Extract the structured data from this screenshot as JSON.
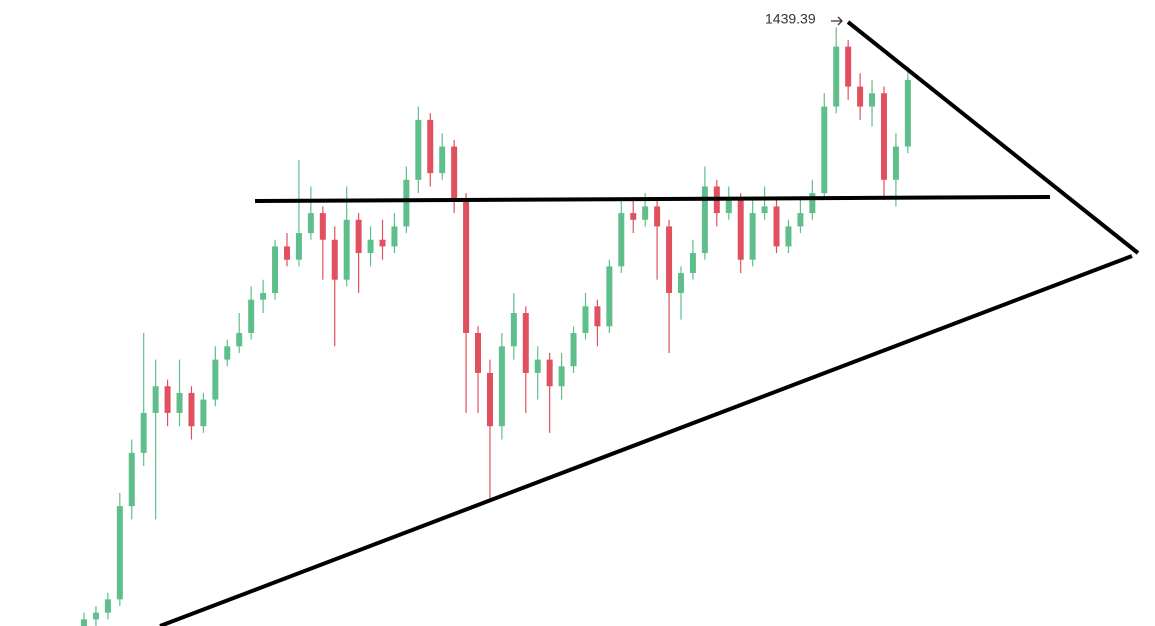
{
  "chart_data": {
    "type": "candlestick",
    "open": [
      985,
      995,
      1000,
      1010,
      1080,
      1120,
      1150,
      1170,
      1150,
      1165,
      1140,
      1160,
      1190,
      1200,
      1210,
      1235,
      1240,
      1275,
      1265,
      1285,
      1300,
      1280,
      1250,
      1295,
      1270,
      1280,
      1275,
      1290,
      1325,
      1370,
      1330,
      1350,
      1310,
      1210,
      1180,
      1140,
      1200,
      1225,
      1180,
      1190,
      1170,
      1185,
      1210,
      1230,
      1215,
      1260,
      1300,
      1295,
      1305,
      1290,
      1240,
      1255,
      1270,
      1320,
      1300,
      1310,
      1265,
      1300,
      1305,
      1275,
      1290,
      1300,
      1315,
      1380,
      1425,
      1395,
      1380,
      1390,
      1325,
      1350
    ],
    "high": [
      1000,
      1005,
      1015,
      1090,
      1130,
      1210,
      1190,
      1175,
      1190,
      1170,
      1165,
      1200,
      1205,
      1225,
      1245,
      1250,
      1280,
      1285,
      1340,
      1320,
      1305,
      1290,
      1320,
      1300,
      1290,
      1295,
      1300,
      1335,
      1380,
      1375,
      1360,
      1355,
      1315,
      1215,
      1190,
      1210,
      1240,
      1230,
      1200,
      1195,
      1195,
      1215,
      1240,
      1235,
      1265,
      1310,
      1310,
      1315,
      1310,
      1295,
      1260,
      1280,
      1335,
      1325,
      1320,
      1315,
      1310,
      1320,
      1310,
      1295,
      1310,
      1325,
      1390,
      1439.39,
      1430,
      1405,
      1400,
      1395,
      1360,
      1410
    ],
    "low": [
      980,
      990,
      995,
      1005,
      1070,
      1110,
      1070,
      1140,
      1140,
      1130,
      1135,
      1155,
      1185,
      1195,
      1205,
      1225,
      1235,
      1260,
      1260,
      1280,
      1250,
      1200,
      1245,
      1240,
      1260,
      1265,
      1270,
      1285,
      1315,
      1320,
      1325,
      1300,
      1150,
      1150,
      1085,
      1130,
      1190,
      1150,
      1160,
      1135,
      1160,
      1180,
      1205,
      1200,
      1210,
      1255,
      1285,
      1290,
      1250,
      1195,
      1220,
      1250,
      1265,
      1290,
      1295,
      1255,
      1260,
      1295,
      1270,
      1270,
      1285,
      1295,
      1310,
      1375,
      1385,
      1370,
      1365,
      1310,
      1305,
      1345
    ],
    "close": [
      995,
      1000,
      1010,
      1080,
      1120,
      1150,
      1170,
      1150,
      1165,
      1140,
      1160,
      1190,
      1200,
      1210,
      1235,
      1240,
      1275,
      1265,
      1285,
      1300,
      1280,
      1250,
      1295,
      1270,
      1280,
      1275,
      1290,
      1325,
      1370,
      1330,
      1350,
      1310,
      1210,
      1180,
      1140,
      1200,
      1225,
      1180,
      1190,
      1170,
      1185,
      1210,
      1230,
      1215,
      1260,
      1300,
      1295,
      1305,
      1290,
      1240,
      1255,
      1270,
      1320,
      1300,
      1310,
      1265,
      1300,
      1305,
      1275,
      1290,
      1300,
      1315,
      1380,
      1425,
      1395,
      1380,
      1390,
      1325,
      1350,
      1400
    ],
    "up_color": "#5fbf8c",
    "down_color": "#e0505e",
    "ylim": [
      990,
      1460
    ]
  }
}
